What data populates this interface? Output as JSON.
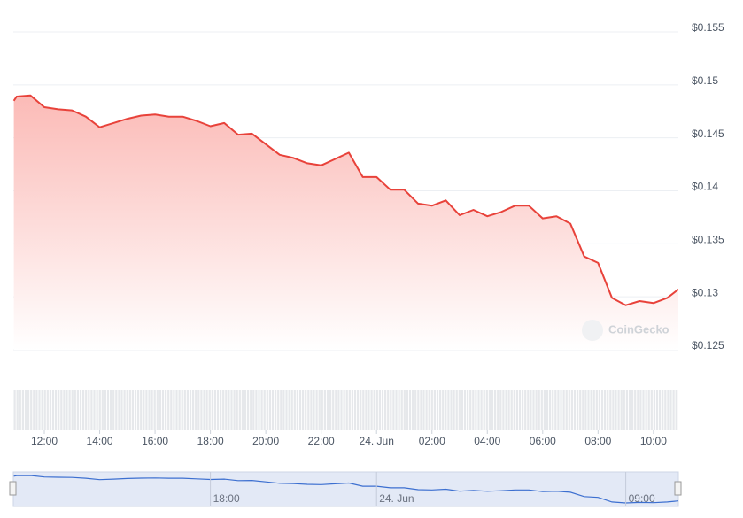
{
  "chart_data": {
    "type": "area",
    "watermark": "CoinGecko",
    "color": "#e8423a",
    "navigator_color": "#3c6fd0",
    "grid": true,
    "xlim": [
      10.88,
      34.9
    ],
    "ylim": [
      0.125,
      0.155
    ],
    "yticks": [
      {
        "value": 0.125,
        "label": "$0.125"
      },
      {
        "value": 0.13,
        "label": "$0.13"
      },
      {
        "value": 0.135,
        "label": "$0.135"
      },
      {
        "value": 0.14,
        "label": "$0.14"
      },
      {
        "value": 0.145,
        "label": "$0.145"
      },
      {
        "value": 0.15,
        "label": "$0.15"
      },
      {
        "value": 0.155,
        "label": "$0.155"
      }
    ],
    "xticks": [
      {
        "value": 12,
        "label": "12:00"
      },
      {
        "value": 14,
        "label": "14:00"
      },
      {
        "value": 16,
        "label": "16:00"
      },
      {
        "value": 18,
        "label": "18:00"
      },
      {
        "value": 20,
        "label": "20:00"
      },
      {
        "value": 22,
        "label": "22:00"
      },
      {
        "value": 24,
        "label": "24. Jun"
      },
      {
        "value": 26,
        "label": "02:00"
      },
      {
        "value": 28,
        "label": "04:00"
      },
      {
        "value": 30,
        "label": "06:00"
      },
      {
        "value": 32,
        "label": "08:00"
      },
      {
        "value": 34,
        "label": "10:00"
      }
    ],
    "navigator_ticks": [
      {
        "value": 18,
        "label": "18:00"
      },
      {
        "value": 24,
        "label": "24. Jun"
      },
      {
        "value": 33,
        "label": "09:00"
      }
    ],
    "x": [
      10.9,
      11,
      11.5,
      12,
      12.5,
      13,
      13.5,
      14,
      14.5,
      15,
      15.5,
      16,
      16.5,
      17,
      17.5,
      18,
      18.5,
      19,
      19.5,
      20,
      20.5,
      21,
      21.5,
      22,
      22.5,
      23,
      23.5,
      24,
      24.5,
      25,
      25.5,
      26,
      26.5,
      27,
      27.5,
      28,
      28.5,
      29,
      29.5,
      30,
      30.5,
      31,
      31.5,
      32,
      32.5,
      33,
      33.5,
      34,
      34.5,
      34.9
    ],
    "values": [
      0.1485,
      0.1489,
      0.149,
      0.1479,
      0.1477,
      0.1476,
      0.147,
      0.146,
      0.1464,
      0.1468,
      0.1471,
      0.1472,
      0.147,
      0.147,
      0.1466,
      0.1461,
      0.1464,
      0.1453,
      0.1454,
      0.1444,
      0.1434,
      0.1431,
      0.1426,
      0.1424,
      0.143,
      0.1436,
      0.1413,
      0.1413,
      0.1401,
      0.1401,
      0.1388,
      0.1386,
      0.1391,
      0.1377,
      0.1382,
      0.1376,
      0.138,
      0.1386,
      0.1386,
      0.1374,
      0.1376,
      0.1369,
      0.1338,
      0.1332,
      0.1299,
      0.1292,
      0.1296,
      0.1294,
      0.1299,
      0.1307
    ]
  }
}
